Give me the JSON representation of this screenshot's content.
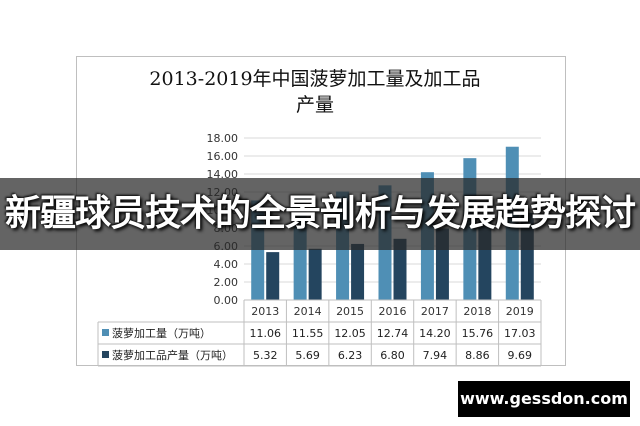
{
  "title": "2013-2019年中国菠萝加工量及加工品产量",
  "title_lines": [
    "2013-2019年中国菠萝加工量及加工品",
    "产量"
  ],
  "banner": {
    "text": "新疆球员技术的全景剖析与发展趋势探讨"
  },
  "watermark": {
    "text": "www.gessdon.com"
  },
  "colors": {
    "series1": "#4f8fb5",
    "series2": "#24455f",
    "banner_bg": "#3a3a3a"
  },
  "chart_data": {
    "type": "bar",
    "title": "2013-2019年中国菠萝加工量及加工品产量",
    "categories": [
      "2013",
      "2014",
      "2015",
      "2016",
      "2017",
      "2018",
      "2019"
    ],
    "series": [
      {
        "name": "菠萝加工量（万吨）",
        "values": [
          11.06,
          11.55,
          12.05,
          12.74,
          14.2,
          15.76,
          17.03
        ],
        "labels": [
          "11.06",
          "11.55",
          "12.05",
          "12.74",
          "14.20",
          "15.76",
          "17.03"
        ]
      },
      {
        "name": "菠萝加工品产量（万吨）",
        "values": [
          5.32,
          5.69,
          6.23,
          6.8,
          7.94,
          8.86,
          9.69
        ],
        "labels": [
          "5.32",
          "5.69",
          "6.23",
          "6.80",
          "7.94",
          "8.86",
          "9.69"
        ]
      }
    ],
    "ylim": [
      0,
      18
    ],
    "yticks": [
      "0.00",
      "2.00",
      "4.00",
      "6.00",
      "8.00",
      "10.00",
      "12.00",
      "14.00",
      "16.00",
      "18.00"
    ],
    "grid": true,
    "legend": "data-table-below"
  }
}
